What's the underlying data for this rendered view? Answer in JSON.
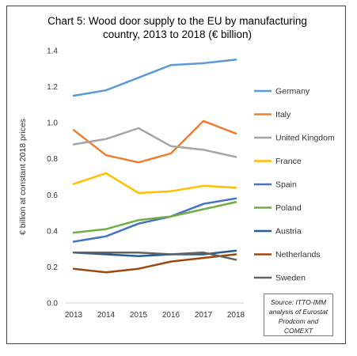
{
  "chart_data": {
    "type": "line",
    "title": "Chart 5: Wood door supply to the EU by manufacturing country, 2013 to 2018 (€ billion)",
    "title_lines": [
      "Chart 5: Wood door supply to the EU by manufacturing",
      "country, 2013 to 2018 (€ billion)"
    ],
    "xlabel": "",
    "ylabel": "€ billion at constant 2018 prices",
    "x": [
      "2013",
      "2014",
      "2015",
      "2016",
      "2017",
      "2018"
    ],
    "y_ticks": [
      "0.0",
      "0.2",
      "0.4",
      "0.6",
      "0.8",
      "1.0",
      "1.2",
      "1.4"
    ],
    "ylim": [
      0,
      1.4
    ],
    "grid": false,
    "legend_position": "right",
    "series": [
      {
        "name": "Germany",
        "color": "#5B9BD5",
        "values": [
          1.15,
          1.18,
          1.25,
          1.32,
          1.33,
          1.35
        ]
      },
      {
        "name": "Italy",
        "color": "#ED7D31",
        "values": [
          0.96,
          0.82,
          0.78,
          0.83,
          1.01,
          0.94
        ]
      },
      {
        "name": "United Kingdom",
        "color": "#A5A5A5",
        "values": [
          0.88,
          0.91,
          0.97,
          0.87,
          0.85,
          0.81
        ]
      },
      {
        "name": "France",
        "color": "#FFC000",
        "values": [
          0.66,
          0.72,
          0.61,
          0.62,
          0.65,
          0.64
        ]
      },
      {
        "name": "Spain",
        "color": "#4472C4",
        "values": [
          0.34,
          0.37,
          0.44,
          0.48,
          0.55,
          0.58
        ]
      },
      {
        "name": "Poland",
        "color": "#70AD47",
        "values": [
          0.39,
          0.41,
          0.46,
          0.48,
          0.52,
          0.56
        ]
      },
      {
        "name": "Austria",
        "color": "#255E91",
        "values": [
          0.28,
          0.27,
          0.26,
          0.27,
          0.27,
          0.29
        ]
      },
      {
        "name": "Netherlands",
        "color": "#9E480E",
        "values": [
          0.19,
          0.17,
          0.19,
          0.23,
          0.25,
          0.27
        ]
      },
      {
        "name": "Sweden",
        "color": "#636363",
        "values": [
          0.28,
          0.28,
          0.28,
          0.27,
          0.28,
          0.24
        ]
      }
    ],
    "source_lines": [
      "Source: ITTO-IMM",
      "analysis of Eurostat",
      "Prodcom and COMEXT"
    ]
  }
}
